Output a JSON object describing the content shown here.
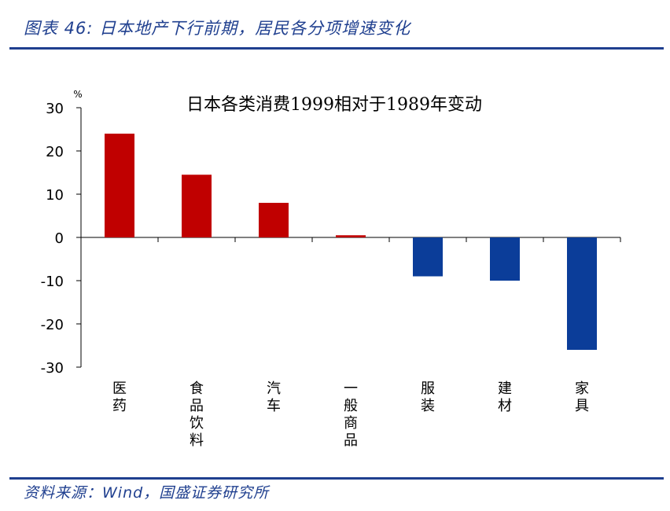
{
  "header": {
    "title": "图表 46:  日本地产下行前期，居民各分项增速变化"
  },
  "footer": {
    "source": "资料来源：Wind，国盛证券研究所"
  },
  "colors": {
    "positive_bar": "#c00000",
    "negative_bar": "#0b3d99",
    "accent": "#1f3f8f"
  },
  "chart_data": {
    "type": "bar",
    "title": "日本各类消费1999相对于1989年变动",
    "ylabel": "%",
    "xlabel": "",
    "categories": [
      "医药",
      "食品饮料",
      "汽车",
      "一般商品",
      "服装",
      "建材",
      "家具"
    ],
    "values": [
      24,
      14.5,
      8,
      0.5,
      -9,
      -10,
      -26
    ],
    "ylim": [
      -30,
      30
    ],
    "yticks": [
      30,
      20,
      10,
      0,
      -10,
      -20,
      -30
    ],
    "grid": false,
    "legend": "none"
  }
}
